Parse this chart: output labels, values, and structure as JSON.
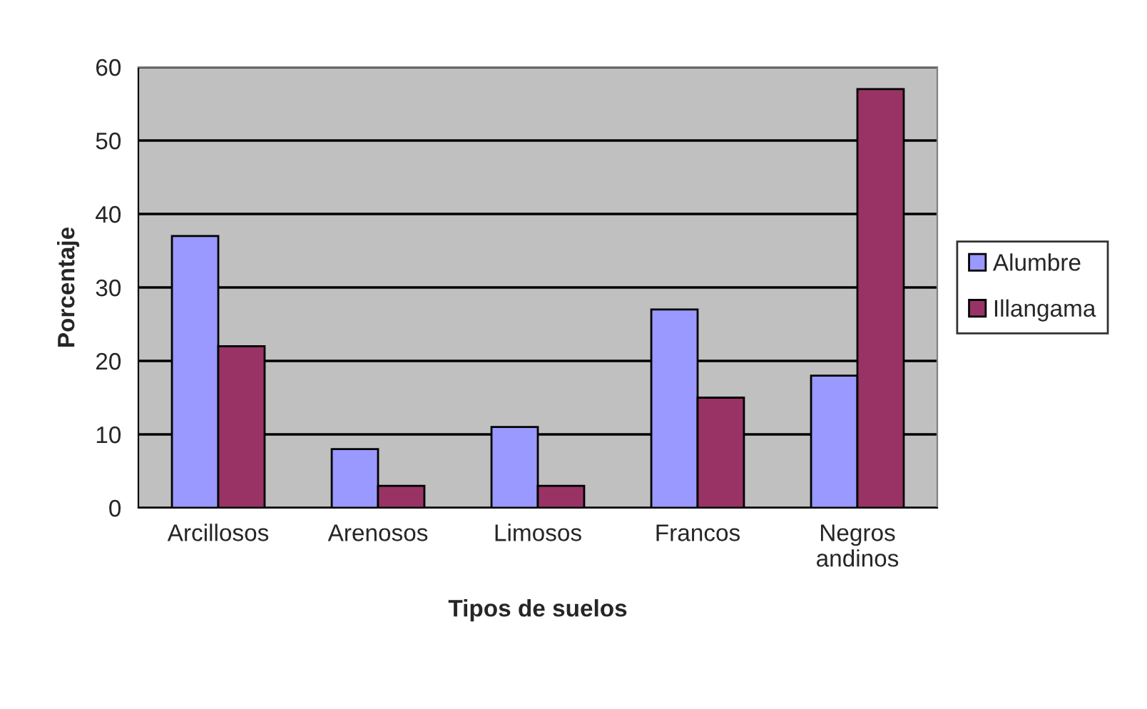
{
  "chart_data": {
    "type": "bar",
    "xlabel": "Tipos de suelos",
    "ylabel": "Porcentaje",
    "categories": [
      "Arcillosos",
      "Arenosos",
      "Limosos",
      "Francos",
      "Negros andinos"
    ],
    "series": [
      {
        "name": "Alumbre",
        "color": "#9999ff",
        "values": [
          37,
          8,
          11,
          27,
          18
        ]
      },
      {
        "name": "Illangama",
        "color": "#993366",
        "values": [
          22,
          3,
          3,
          15,
          57
        ]
      }
    ],
    "ylim": [
      0,
      60
    ],
    "yticks": [
      0,
      10,
      20,
      30,
      40,
      50,
      60
    ],
    "grid": "y",
    "legend": "right"
  }
}
